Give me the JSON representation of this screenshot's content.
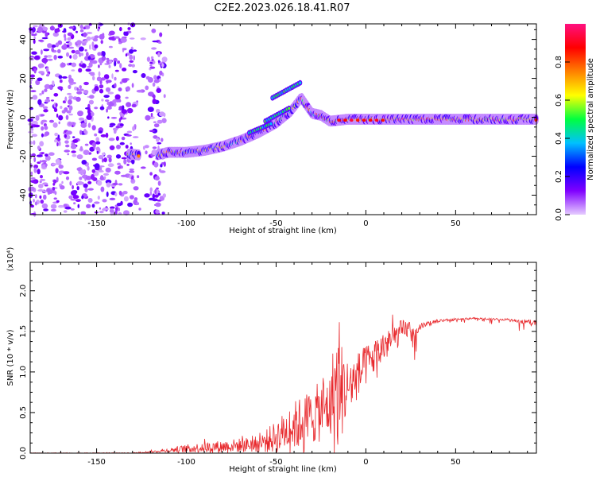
{
  "title": "C2E2.2023.026.18.41.R07",
  "chart_data": [
    {
      "type": "heatmap",
      "name": "spectrogram",
      "xlabel": "Height of straight line (km)",
      "ylabel": "Frequency (Hz)",
      "xlim": [
        -187,
        95
      ],
      "ylim": [
        -50,
        48
      ],
      "xticks": [
        -150,
        -100,
        -50,
        0,
        50
      ],
      "yticks": [
        -40,
        -20,
        0,
        20,
        40
      ],
      "colorbar": {
        "label": "Normalized spectral amplitude",
        "ticks": [
          0.0,
          0.2,
          0.4,
          0.6,
          0.8
        ],
        "tick_labels": [
          "0.0",
          "0.2",
          "0.4",
          "0.6",
          "0.8"
        ],
        "range": [
          0,
          1
        ],
        "colors": [
          "#e6ccff",
          "#8000ff",
          "#0000ff",
          "#00c0ff",
          "#00ff40",
          "#ffff00",
          "#ff8000",
          "#ff0000",
          "#ff1080"
        ]
      },
      "ridge": {
        "x": [
          -130,
          -120,
          -110,
          -100,
          -90,
          -80,
          -70,
          -60,
          -50,
          -42,
          -36,
          -30,
          -25,
          -20,
          -10,
          0,
          20,
          50,
          94
        ],
        "y": [
          -19,
          -20,
          -18,
          -18,
          -17,
          -15,
          -12,
          -8,
          -3,
          3,
          10,
          2,
          1,
          -2,
          -1,
          -1,
          -1,
          -1,
          -1
        ]
      },
      "noise_region_x": [
        -187,
        -112
      ]
    },
    {
      "type": "line",
      "name": "snr",
      "xlabel": "Height of straight line (km)",
      "ylabel": "SNR (10 * v/v)",
      "y_multiplier": "(x10⁴)",
      "xlim": [
        -187,
        95
      ],
      "ylim": [
        0,
        2.35
      ],
      "xticks": [
        -150,
        -100,
        -50,
        0,
        50
      ],
      "yticks": [
        0.0,
        0.5,
        1.0,
        1.5,
        2.0
      ],
      "ytick_labels": [
        "0.0",
        "0.5",
        "1.0",
        "1.5",
        "2.0"
      ],
      "color": "#e8282c",
      "envelope": {
        "x": [
          -187,
          -130,
          -115,
          -100,
          -80,
          -60,
          -50,
          -40,
          -30,
          -20,
          -17,
          -10,
          0,
          10,
          20,
          30,
          40,
          60,
          80,
          94
        ],
        "base": [
          0.0,
          0.0,
          0.02,
          0.04,
          0.06,
          0.08,
          0.14,
          0.25,
          0.35,
          0.45,
          0.5,
          0.7,
          1.0,
          1.25,
          1.45,
          1.6,
          1.65,
          1.67,
          1.66,
          1.64
        ],
        "amp": [
          0.005,
          0.01,
          0.03,
          0.1,
          0.15,
          0.2,
          0.4,
          0.6,
          0.7,
          0.8,
          1.7,
          0.7,
          0.5,
          0.4,
          0.3,
          0.08,
          0.04,
          0.02,
          0.03,
          0.08
        ]
      }
    }
  ]
}
